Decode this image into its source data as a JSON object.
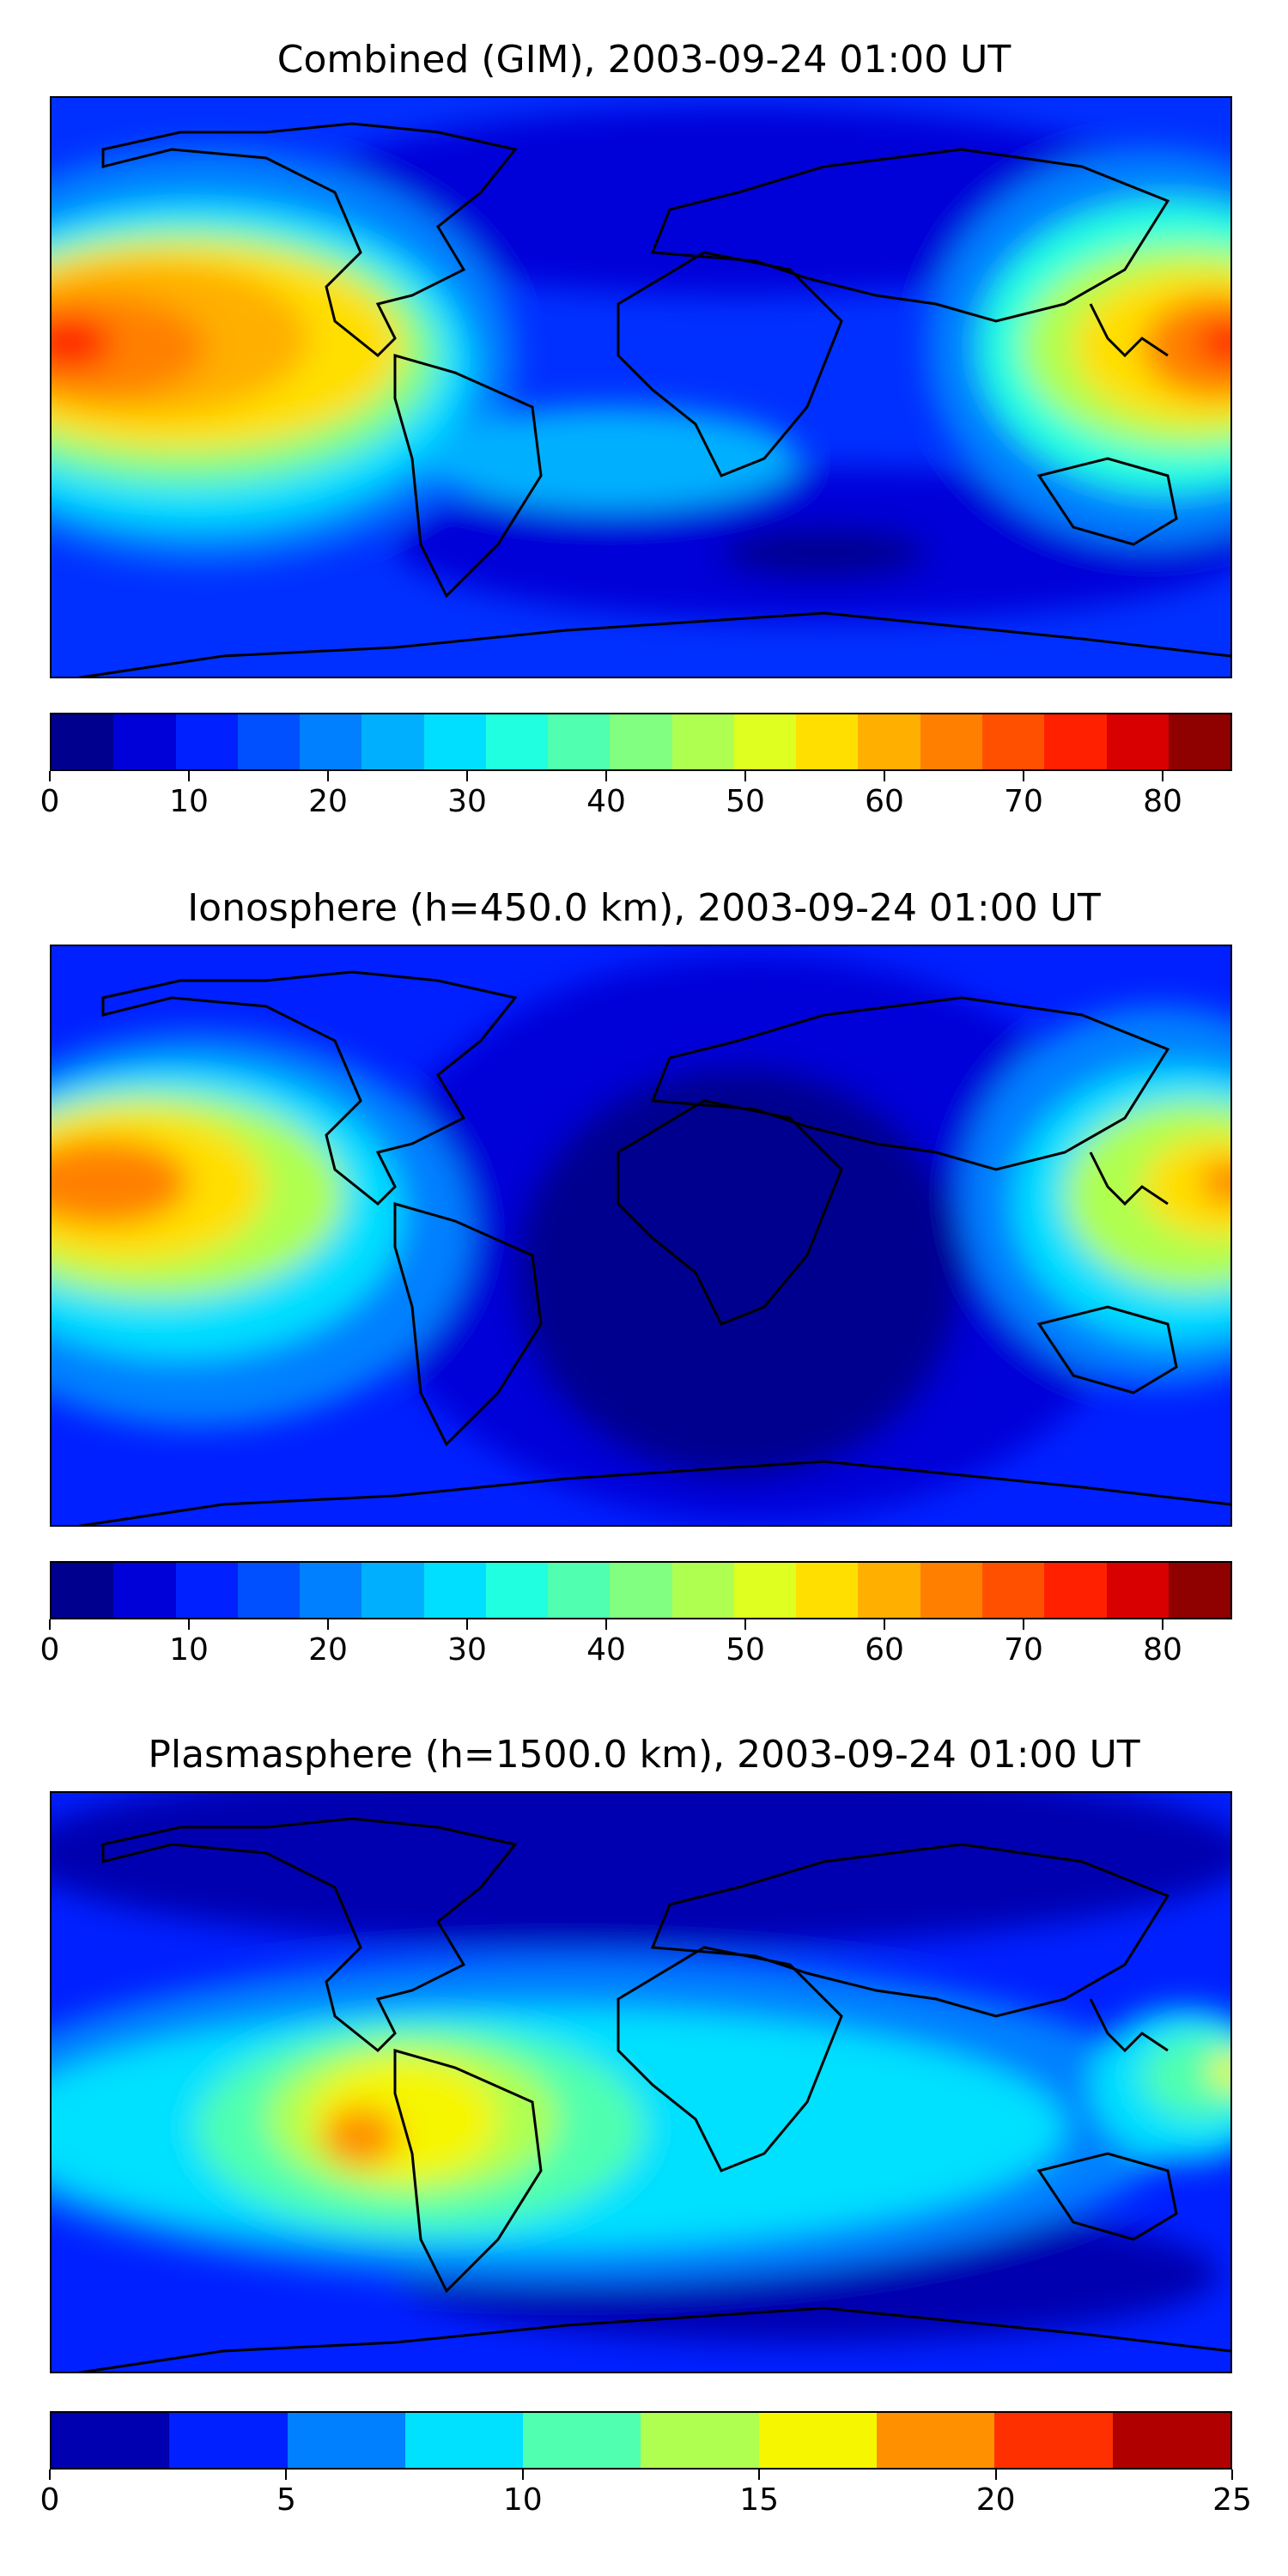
{
  "panels": [
    {
      "title": "Combined (GIM), 2003-09-24 01:00 UT",
      "colorbar_colors": [
        "#00008f",
        "#0000d8",
        "#0020ff",
        "#0050ff",
        "#0080ff",
        "#00b0ff",
        "#00dfff",
        "#20ffdf",
        "#50ffaf",
        "#80ff80",
        "#afff50",
        "#dfff20",
        "#ffdf00",
        "#ffaf00",
        "#ff8000",
        "#ff5000",
        "#ff2000",
        "#d80000",
        "#8f0000"
      ],
      "colorbar_range": [
        0,
        85
      ],
      "colorbar_ticks": [
        "0",
        "10",
        "20",
        "30",
        "40",
        "50",
        "60",
        "70",
        "80"
      ],
      "colorbar_tick_values": [
        0,
        10,
        20,
        30,
        40,
        50,
        60,
        70,
        80
      ]
    },
    {
      "title": "Ionosphere  (h=450.0 km), 2003-09-24 01:00 UT",
      "colorbar_colors": [
        "#00008f",
        "#0000d8",
        "#0020ff",
        "#0050ff",
        "#0080ff",
        "#00b0ff",
        "#00dfff",
        "#20ffdf",
        "#50ffaf",
        "#80ff80",
        "#afff50",
        "#dfff20",
        "#ffdf00",
        "#ffaf00",
        "#ff8000",
        "#ff5000",
        "#ff2000",
        "#d80000",
        "#8f0000"
      ],
      "colorbar_range": [
        0,
        85
      ],
      "colorbar_ticks": [
        "0",
        "10",
        "20",
        "30",
        "40",
        "50",
        "60",
        "70",
        "80"
      ],
      "colorbar_tick_values": [
        0,
        10,
        20,
        30,
        40,
        50,
        60,
        70,
        80
      ]
    },
    {
      "title": "Plasmasphere (h=1500.0 km), 2003-09-24 01:00 UT",
      "colorbar_colors": [
        "#0000b0",
        "#0020ff",
        "#0080ff",
        "#00e0ff",
        "#50ffaf",
        "#afff50",
        "#f6f600",
        "#ff9000",
        "#ff3000",
        "#b00000"
      ],
      "colorbar_range": [
        0,
        25
      ],
      "colorbar_ticks": [
        "0",
        "5",
        "10",
        "15",
        "20",
        "25"
      ],
      "colorbar_tick_values": [
        0,
        5,
        10,
        15,
        20,
        25
      ]
    }
  ]
}
